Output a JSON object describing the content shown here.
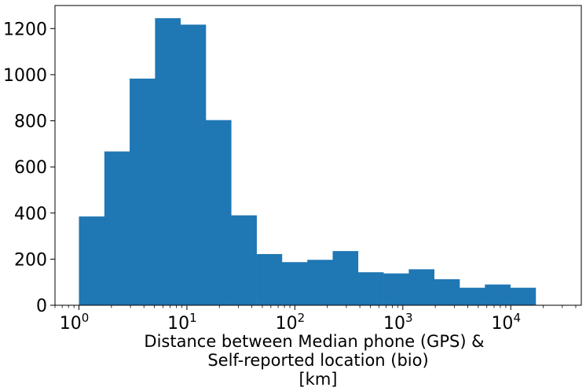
{
  "chart_data": {
    "type": "bar",
    "subtype": "histogram",
    "title": "",
    "xlabel_lines": [
      "Distance between Median phone (GPS) &",
      "Self-reported location (bio)",
      "[km]"
    ],
    "ylabel": "",
    "x_scale": "log",
    "xlim": [
      0.6,
      45000
    ],
    "ylim": [
      0,
      1300
    ],
    "x_ticks": [
      {
        "value": 1,
        "base": "10",
        "exp": "0"
      },
      {
        "value": 10,
        "base": "10",
        "exp": "1"
      },
      {
        "value": 100,
        "base": "10",
        "exp": "2"
      },
      {
        "value": 1000,
        "base": "10",
        "exp": "3"
      },
      {
        "value": 10000,
        "base": "10",
        "exp": "4"
      }
    ],
    "y_ticks": [
      {
        "value": 0,
        "label": "0"
      },
      {
        "value": 200,
        "label": "200"
      },
      {
        "value": 400,
        "label": "400"
      },
      {
        "value": 600,
        "label": "600"
      },
      {
        "value": 800,
        "label": "800"
      },
      {
        "value": 1000,
        "label": "1000"
      },
      {
        "value": 1200,
        "label": "1200"
      }
    ],
    "bin_edges": [
      1,
      1.72,
      2.95,
      5.07,
      8.71,
      14.96,
      25.7,
      44.2,
      75.9,
      130.4,
      224.0,
      384.9,
      661.3,
      1136,
      1952,
      3354,
      5763,
      9902,
      17013
    ],
    "counts": [
      385,
      667,
      983,
      1245,
      1217,
      803,
      390,
      222,
      187,
      197,
      235,
      143,
      138,
      156,
      113,
      76,
      90,
      76
    ],
    "bar_color": "#1f77b4",
    "grid": false
  }
}
